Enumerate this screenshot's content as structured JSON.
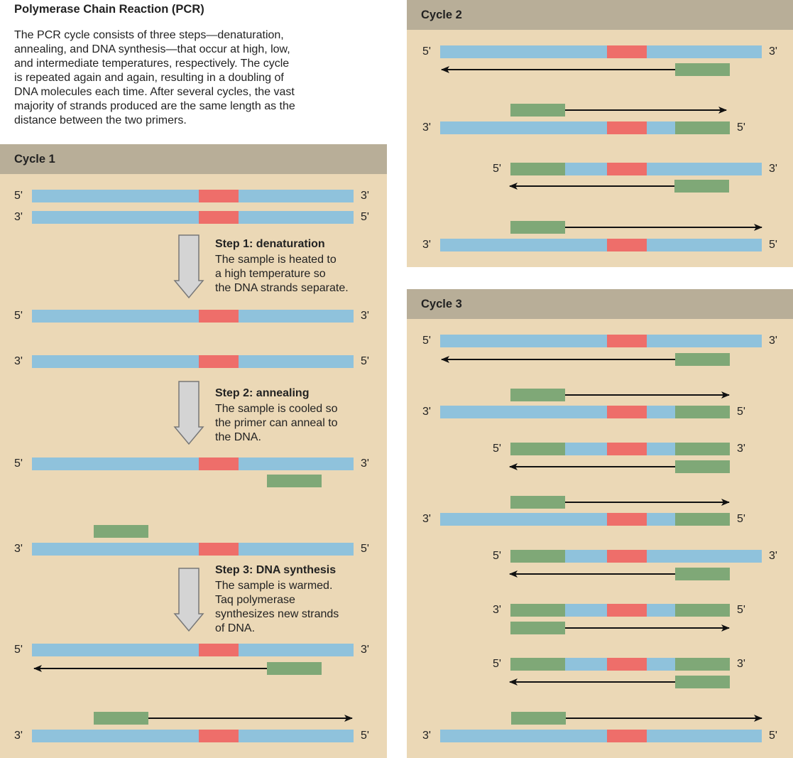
{
  "title": "Polymerase Chain Reaction (PCR)",
  "intro": "The PCR cycle consists of three steps—denaturation,\nannealing, and DNA synthesis—that occur at high, low,\nand intermediate temperatures, respectively. The cycle\nis repeated again and again, resulting in a doubling of\nDNA molecules each time. After several cycles, the vast\nmajority of strands produced are the same length as the\ndistance between the two primers.",
  "colors": {
    "panel_bg": "#ebd8b6",
    "panel_header": "#b8ae98",
    "dna_strand": "#8fc2dc",
    "target_region": "#ee6e6a",
    "primer": "#7fa877",
    "arrow": "#111111",
    "step_arrow_fill": "#d4d4d4",
    "step_arrow_stroke": "#777777"
  },
  "five_prime": "5'",
  "three_prime": "3'",
  "cycle1": {
    "title": "Cycle 1",
    "steps": [
      {
        "title": "Step 1: denaturation",
        "text": "The sample is heated to\na high temperature so\nthe DNA strands separate."
      },
      {
        "title": "Step 2: annealing",
        "text": "The sample is cooled so\nthe primer can anneal to\nthe DNA."
      },
      {
        "title": "Step 3: DNA synthesis",
        "text": "The sample is warmed.\nTaq polymerase\nsynthesizes new strands\nof DNA."
      }
    ]
  },
  "cycle2": {
    "title": "Cycle 2"
  },
  "cycle3": {
    "title": "Cycle 3"
  }
}
